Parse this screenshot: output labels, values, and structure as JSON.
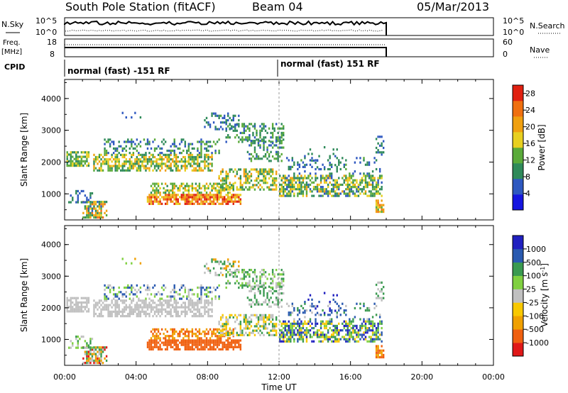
{
  "header": {
    "station": "South Pole Station (fitACF)",
    "beam": "Beam 04",
    "date": "05/Mar/2013"
  },
  "sky_panel": {
    "left_label": "N.Sky",
    "left_ticks": [
      "10^5",
      "10^0"
    ],
    "right_ticks": [
      "10^5",
      "10^0"
    ],
    "right_label": "N.Search"
  },
  "freq_panel": {
    "left_label_1": "Freq.",
    "left_label_2": "[MHz]",
    "left_ticks": [
      "18",
      "8"
    ],
    "right_ticks": [
      "60",
      "0"
    ],
    "right_label": "Nave"
  },
  "cpid": {
    "label": "CPID",
    "segments": [
      {
        "name": "normal (fast) -151 RF",
        "start_h": 0
      },
      {
        "name": "normal (fast) 151 RF",
        "start_h": 12
      }
    ]
  },
  "colors": {
    "power_scale": [
      "#1515e0",
      "#2e58c0",
      "#2f8a5a",
      "#5aaa3a",
      "#e8d020",
      "#f0a010",
      "#f07010",
      "#e02010"
    ],
    "velocity_scale": [
      "#e01818",
      "#f06010",
      "#f0a000",
      "#f8c800",
      "#c0c0c0",
      "#80d040",
      "#3a9a50",
      "#2a5ab0",
      "#2020c0"
    ]
  },
  "chart_data": [
    {
      "type": "heatmap",
      "name": "power",
      "xlabel": "",
      "ylabel": "Slant Range [km]",
      "xlim": [
        0,
        24
      ],
      "ylim": [
        180,
        4600
      ],
      "yticks": [
        "1000",
        "2000",
        "3000",
        "4000"
      ],
      "colorbar_label": "Power [dB]",
      "colorbar_ticks": [
        "4",
        "8",
        "12",
        "16",
        "20",
        "24",
        "28"
      ],
      "colorbar_range": [
        0,
        30
      ]
    },
    {
      "type": "heatmap",
      "name": "velocity",
      "xlabel": "Time UT",
      "ylabel": "Slant Range [km]",
      "xlim": [
        0,
        24
      ],
      "ylim": [
        180,
        4600
      ],
      "xticks": [
        "00:00",
        "04:00",
        "08:00",
        "12:00",
        "16:00",
        "20:00",
        "00:00"
      ],
      "yticks": [
        "1000",
        "2000",
        "3000",
        "4000"
      ],
      "colorbar_label": "Velocity [m s^-1]",
      "colorbar_ticks": [
        "1000",
        "500",
        "100",
        "25",
        "-25",
        "-100",
        "-500",
        "-1000"
      ]
    }
  ]
}
